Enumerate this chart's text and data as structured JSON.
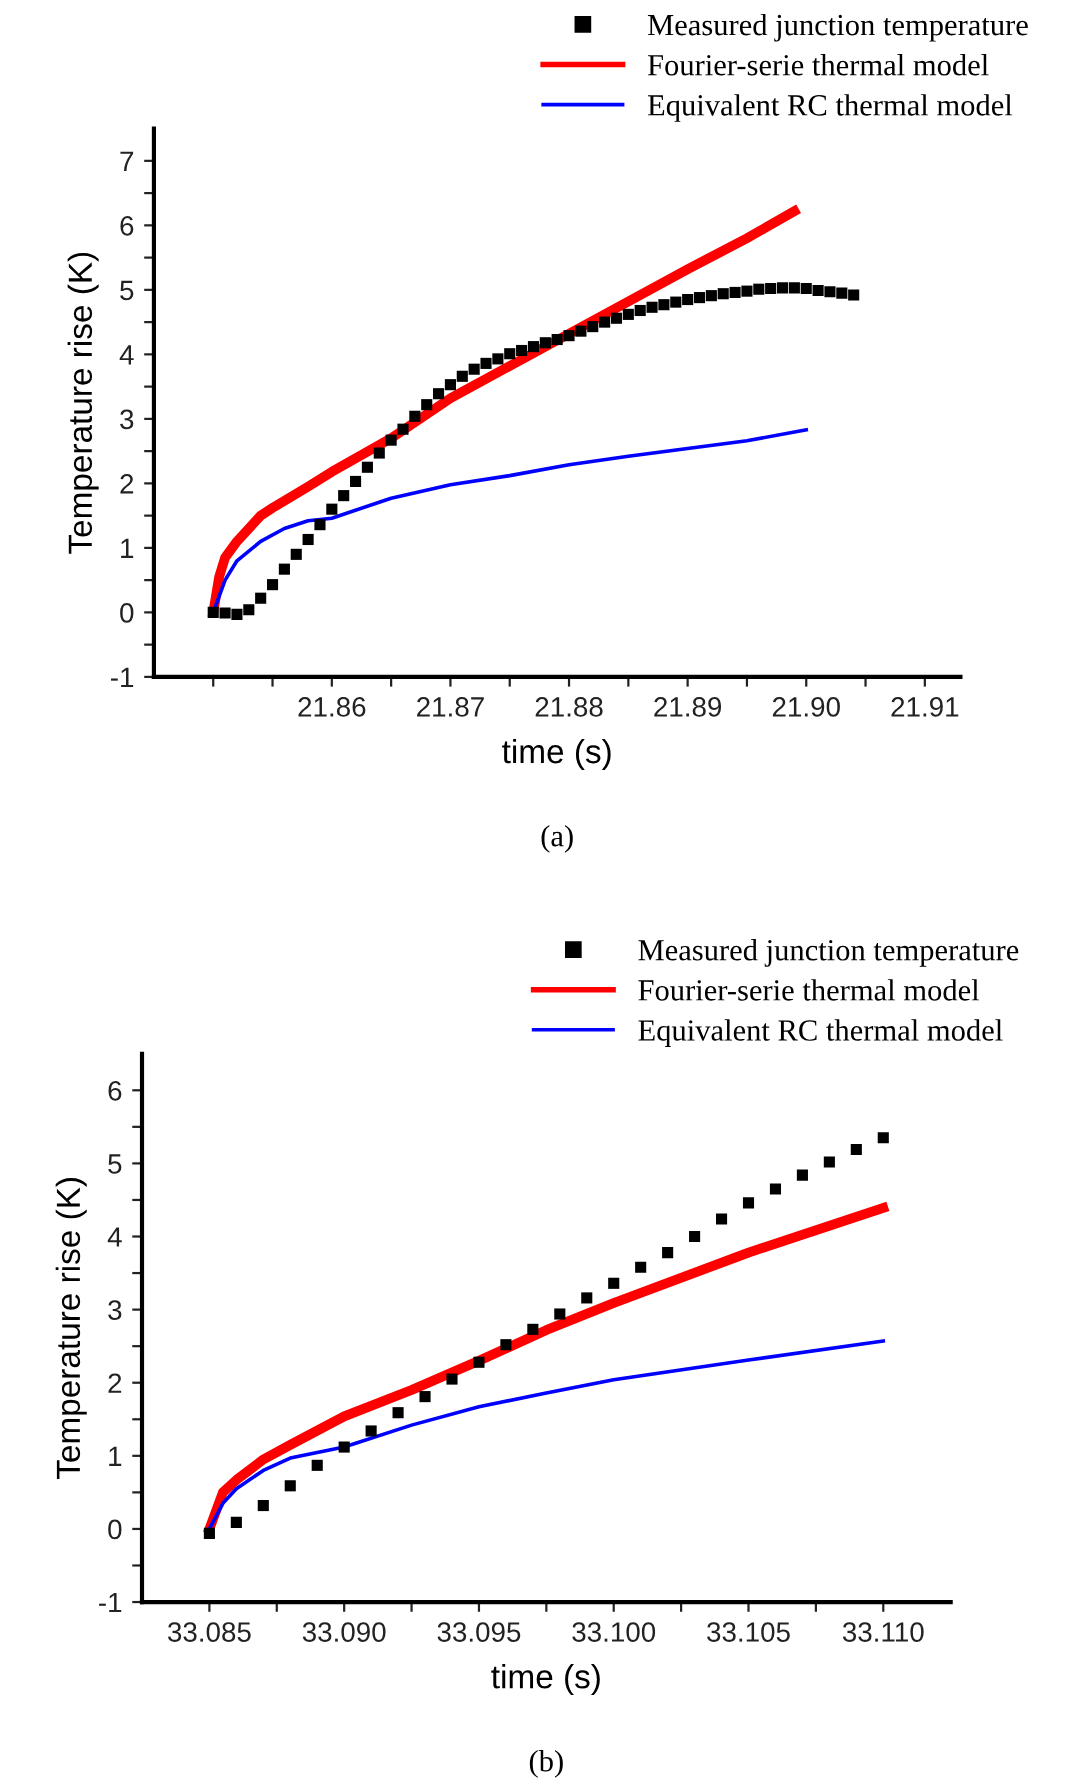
{
  "chart_data": [
    {
      "type": "line",
      "xlabel": "time (s)",
      "ylabel": "Temperature rise (K)",
      "annotations": [
        "(a)"
      ],
      "legend": "top right",
      "grid": false,
      "xlim": [
        21.845,
        21.913
      ],
      "ylim": [
        -1,
        7.5
      ],
      "xticks": [
        {
          "value": 21.85,
          "label": null
        },
        {
          "value": 21.855,
          "label": null
        },
        {
          "value": 21.86,
          "label": "21.86"
        },
        {
          "value": 21.865,
          "label": null
        },
        {
          "value": 21.87,
          "label": "21.87"
        },
        {
          "value": 21.875,
          "label": null
        },
        {
          "value": 21.88,
          "label": "21.88"
        },
        {
          "value": 21.885,
          "label": null
        },
        {
          "value": 21.89,
          "label": "21.89"
        },
        {
          "value": 21.895,
          "label": null
        },
        {
          "value": 21.9,
          "label": "21.90"
        },
        {
          "value": 21.905,
          "label": null
        },
        {
          "value": 21.91,
          "label": "21.91"
        }
      ],
      "yticks": [
        -1,
        {
          "value": -0.5,
          "label": null
        },
        0,
        {
          "value": 0.5,
          "label": null
        },
        1,
        {
          "value": 1.5,
          "label": null
        },
        2,
        {
          "value": 2.5,
          "label": null
        },
        3,
        {
          "value": 3.5,
          "label": null
        },
        4,
        {
          "value": 4.5,
          "label": null
        },
        5,
        {
          "value": 5.5,
          "label": null
        },
        6,
        {
          "value": 6.5,
          "label": null
        },
        7
      ],
      "series": [
        {
          "name": "Measured junction temperature",
          "type": "scatter",
          "marker": "square",
          "color": "#000000",
          "x": [
            21.85,
            21.851,
            21.852,
            21.853,
            21.854,
            21.855,
            21.856,
            21.857,
            21.858,
            21.859,
            21.86,
            21.861,
            21.862,
            21.863,
            21.864,
            21.865,
            21.866,
            21.867,
            21.868,
            21.869,
            21.87,
            21.871,
            21.872,
            21.873,
            21.874,
            21.875,
            21.876,
            21.877,
            21.878,
            21.879,
            21.88,
            21.881,
            21.882,
            21.883,
            21.884,
            21.885,
            21.886,
            21.887,
            21.888,
            21.889,
            21.89,
            21.891,
            21.892,
            21.893,
            21.894,
            21.895,
            21.896,
            21.897,
            21.898,
            21.899,
            21.9,
            21.901,
            21.902,
            21.903,
            21.904
          ],
          "values": [
            0.0,
            -0.01,
            -0.03,
            0.04,
            0.22,
            0.43,
            0.67,
            0.9,
            1.13,
            1.36,
            1.6,
            1.81,
            2.03,
            2.25,
            2.47,
            2.67,
            2.84,
            3.04,
            3.22,
            3.39,
            3.53,
            3.66,
            3.77,
            3.86,
            3.93,
            4.01,
            4.06,
            4.12,
            4.18,
            4.23,
            4.29,
            4.36,
            4.43,
            4.5,
            4.56,
            4.62,
            4.68,
            4.73,
            4.77,
            4.81,
            4.85,
            4.88,
            4.91,
            4.94,
            4.96,
            4.98,
            5.01,
            5.02,
            5.03,
            5.03,
            5.02,
            4.99,
            4.97,
            4.95,
            4.92
          ]
        },
        {
          "name": "Fourier-serie thermal model",
          "color": "#ff0000",
          "x": [
            21.85,
            21.8505,
            21.851,
            21.852,
            21.854,
            21.855,
            21.858,
            21.86,
            21.865,
            21.87,
            21.875,
            21.88,
            21.885,
            21.89,
            21.895,
            21.899
          ],
          "values": [
            0,
            0.55,
            0.85,
            1.1,
            1.5,
            1.62,
            1.95,
            2.18,
            2.7,
            3.32,
            3.82,
            4.32,
            4.82,
            5.32,
            5.8,
            6.22
          ]
        },
        {
          "name": "Equivalent RC thermal model",
          "color": "#0000ff",
          "x": [
            21.85,
            21.851,
            21.852,
            21.854,
            21.856,
            21.858,
            21.86,
            21.865,
            21.87,
            21.875,
            21.88,
            21.885,
            21.89,
            21.895,
            21.9
          ],
          "values": [
            0,
            0.5,
            0.8,
            1.1,
            1.3,
            1.42,
            1.46,
            1.77,
            1.98,
            2.12,
            2.29,
            2.42,
            2.54,
            2.66,
            2.83
          ]
        }
      ]
    },
    {
      "type": "line",
      "xlabel": "time (s)",
      "ylabel": "Temperature rise (K)",
      "annotations": [
        "(b)"
      ],
      "legend": "top right",
      "grid": false,
      "xlim": [
        33.0825,
        33.1125
      ],
      "ylim": [
        -1,
        6.5
      ],
      "xticks": [
        {
          "value": 33.085,
          "label": "33.085"
        },
        {
          "value": 33.0875,
          "label": null
        },
        {
          "value": 33.09,
          "label": "33.090"
        },
        {
          "value": 33.0925,
          "label": null
        },
        {
          "value": 33.095,
          "label": "33.095"
        },
        {
          "value": 33.0975,
          "label": null
        },
        {
          "value": 33.1,
          "label": "33.100"
        },
        {
          "value": 33.1025,
          "label": null
        },
        {
          "value": 33.105,
          "label": "33.105"
        },
        {
          "value": 33.1075,
          "label": null
        },
        {
          "value": 33.11,
          "label": "33.110"
        }
      ],
      "yticks": [
        -1,
        {
          "value": -0.5,
          "label": null
        },
        0,
        {
          "value": 0.5,
          "label": null
        },
        1,
        {
          "value": 1.5,
          "label": null
        },
        2,
        {
          "value": 2.5,
          "label": null
        },
        3,
        {
          "value": 3.5,
          "label": null
        },
        4,
        {
          "value": 4.5,
          "label": null
        },
        5,
        {
          "value": 5.5,
          "label": null
        },
        6
      ],
      "series": [
        {
          "name": "Measured junction temperature",
          "type": "scatter",
          "marker": "square",
          "color": "#000000",
          "x": [
            33.085,
            33.086,
            33.087,
            33.088,
            33.089,
            33.09,
            33.091,
            33.092,
            33.093,
            33.094,
            33.095,
            33.096,
            33.097,
            33.098,
            33.099,
            33.1,
            33.101,
            33.102,
            33.103,
            33.104,
            33.105,
            33.106,
            33.107,
            33.108,
            33.109,
            33.11
          ],
          "values": [
            -0.06,
            0.09,
            0.32,
            0.59,
            0.87,
            1.12,
            1.34,
            1.59,
            1.81,
            2.05,
            2.28,
            2.52,
            2.73,
            2.94,
            3.16,
            3.36,
            3.58,
            3.78,
            4.0,
            4.24,
            4.46,
            4.65,
            4.84,
            5.02,
            5.19,
            5.35
          ]
        },
        {
          "name": "Fourier-serie thermal model",
          "color": "#ff0000",
          "x": [
            33.085,
            33.0855,
            33.086,
            33.087,
            33.088,
            33.09,
            33.0925,
            33.095,
            33.0975,
            33.1,
            33.105,
            33.11
          ],
          "values": [
            0,
            0.5,
            0.67,
            0.95,
            1.15,
            1.54,
            1.9,
            2.3,
            2.72,
            3.09,
            3.78,
            4.39
          ]
        },
        {
          "name": "Equivalent RC thermal model",
          "color": "#0000ff",
          "x": [
            33.085,
            33.0855,
            33.086,
            33.087,
            33.088,
            33.09,
            33.0925,
            33.095,
            33.0975,
            33.1,
            33.105,
            33.11
          ],
          "values": [
            0,
            0.35,
            0.55,
            0.8,
            0.97,
            1.12,
            1.42,
            1.67,
            1.86,
            2.04,
            2.31,
            2.57
          ]
        }
      ]
    }
  ]
}
